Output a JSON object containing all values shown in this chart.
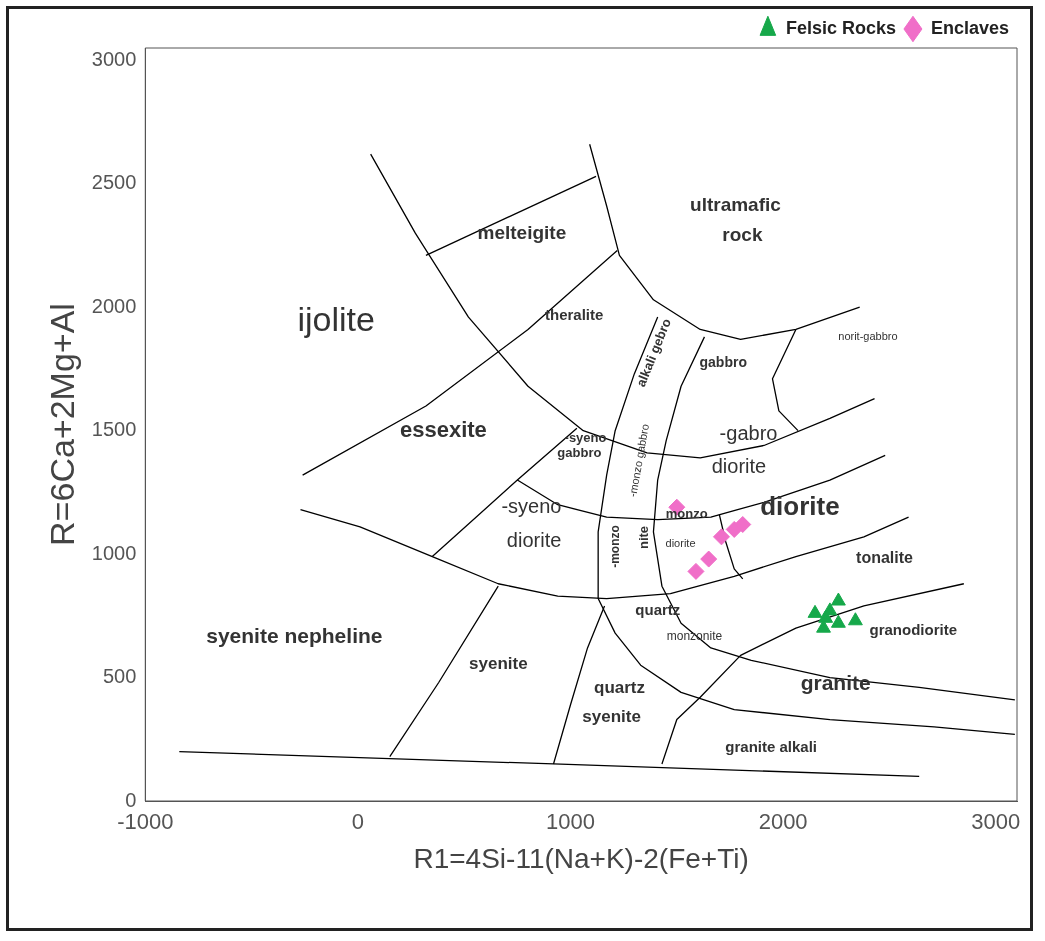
{
  "chart_data": {
    "type": "scatter",
    "xlabel": "R1=4Si-11(Na+K)-2(Fe+Ti)",
    "ylabel": "R=6Ca+2Mg+Al",
    "xlim": [
      -1000,
      3100
    ],
    "xticks": [
      -1000,
      0,
      1000,
      2000,
      3000
    ],
    "ylim": [
      0,
      3050
    ],
    "yticks": [
      0,
      500,
      1000,
      1500,
      2000,
      2500,
      3000
    ],
    "grid": false,
    "legend": "top right",
    "series": [
      {
        "name": "Felsic Rocks",
        "type": "scatter",
        "marker": "triangle",
        "color": "#16a84a",
        "x": [
          2150,
          2200,
          2260,
          2190,
          2260,
          2340,
          2220
        ],
        "values": [
          760,
          740,
          810,
          700,
          720,
          730,
          770
        ]
      },
      {
        "name": "Enclaves",
        "type": "scatter",
        "marker": "diamond",
        "color": "#f06ec8",
        "x": [
          1500,
          1710,
          1770,
          1810,
          1650,
          1590
        ],
        "values": [
          1190,
          1070,
          1100,
          1120,
          980,
          930
        ]
      },
      {
        "type": "line",
        "marker": "none",
        "color": "#000000",
        "x": [
          -840,
          920,
          2640
        ],
        "values": [
          200,
          150,
          100
        ]
      },
      {
        "type": "line",
        "marker": "none",
        "color": "#000000",
        "x": [
          1090,
          1170,
          1230,
          1390,
          1610,
          1800,
          2060,
          2360
        ],
        "values": [
          2660,
          2410,
          2210,
          2030,
          1910,
          1870,
          1910,
          2000
        ]
      },
      {
        "type": "line",
        "marker": "none",
        "color": "#000000",
        "x": [
          60,
          270,
          520,
          800,
          1060,
          1360,
          1610,
          1910,
          2220,
          2430
        ],
        "values": [
          2620,
          2300,
          1960,
          1680,
          1500,
          1410,
          1390,
          1440,
          1550,
          1630
        ]
      },
      {
        "type": "line",
        "marker": "none",
        "color": "#000000",
        "x": [
          750,
          940,
          1170,
          1410,
          1660,
          1910,
          2220,
          2480
        ],
        "values": [
          1300,
          1200,
          1150,
          1140,
          1150,
          1210,
          1300,
          1400
        ]
      },
      {
        "type": "line",
        "marker": "none",
        "color": "#000000",
        "x": [
          -270,
          10,
          350,
          660,
          940,
          1170,
          1470,
          1770,
          2060,
          2380,
          2590
        ],
        "values": [
          1180,
          1110,
          990,
          880,
          830,
          820,
          840,
          910,
          990,
          1070,
          1150
        ]
      },
      {
        "type": "line",
        "marker": "none",
        "color": "#000000",
        "x": [
          1410,
          1300,
          1210,
          1170,
          1130,
          1130,
          1210,
          1330,
          1520,
          1770,
          2220,
          2710,
          3090
        ],
        "values": [
          1960,
          1730,
          1500,
          1320,
          1090,
          820,
          680,
          550,
          440,
          370,
          330,
          300,
          270
        ]
      },
      {
        "type": "line",
        "marker": "none",
        "color": "#000000",
        "x": [
          1630,
          1520,
          1450,
          1410,
          1390,
          1430,
          1520,
          1660,
          1850,
          2220,
          2640,
          3090
        ],
        "values": [
          1880,
          1680,
          1460,
          1300,
          1090,
          870,
          720,
          620,
          570,
          500,
          460,
          410
        ]
      },
      {
        "type": "line",
        "marker": "none",
        "color": "#000000",
        "x": [
          1430,
          1500,
          1610,
          1800,
          2060,
          2380,
          2850
        ],
        "values": [
          150,
          330,
          420,
          590,
          700,
          790,
          880
        ]
      },
      {
        "type": "line",
        "marker": "none",
        "color": "#000000",
        "x": [
          1700,
          1730,
          1770,
          1810
        ],
        "values": [
          1160,
          1050,
          940,
          900
        ]
      },
      {
        "type": "line",
        "marker": "none",
        "color": "#000000",
        "x": [
          320,
          1120
        ],
        "values": [
          2210,
          2530
        ]
      },
      {
        "type": "line",
        "marker": "none",
        "color": "#000000",
        "x": [
          -260,
          320,
          800,
          1220
        ],
        "values": [
          1320,
          1600,
          1910,
          2230
        ]
      },
      {
        "type": "line",
        "marker": "none",
        "color": "#000000",
        "x": [
          350,
          750,
          1030
        ],
        "values": [
          990,
          1300,
          1510
        ]
      },
      {
        "type": "line",
        "marker": "none",
        "color": "#000000",
        "x": [
          150,
          380,
          660
        ],
        "values": [
          180,
          480,
          870
        ]
      },
      {
        "type": "line",
        "marker": "none",
        "color": "#000000",
        "x": [
          920,
          1000,
          1080,
          1160
        ],
        "values": [
          150,
          390,
          620,
          790
        ]
      },
      {
        "type": "line",
        "marker": "none",
        "color": "#000000",
        "x": [
          2060,
          1950,
          1980,
          2070
        ],
        "values": [
          1910,
          1710,
          1580,
          1500
        ]
      }
    ],
    "annotations": [
      "melteigite",
      "ultramafic",
      "rock",
      "ijolite",
      "theralite",
      "alkali gebro",
      "gabbro",
      "norit-gabbro",
      "essexite",
      "-syeno",
      "gabbro",
      "-monzo gabbro",
      "-gabro",
      "diorite",
      "diorite",
      "-syeno",
      "diorite",
      "-monzo",
      "nite",
      "monzo",
      "diorite",
      "tonalite",
      "quartz",
      "monzonite",
      "granodiorite",
      "syenite nepheline",
      "syenite",
      "quartz",
      "syenite",
      "granite",
      "granite alkali"
    ]
  }
}
